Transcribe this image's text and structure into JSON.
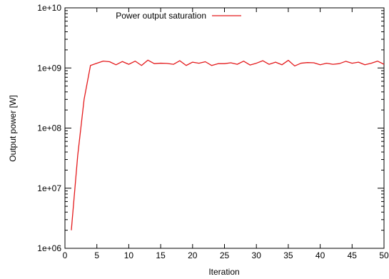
{
  "chart_data": {
    "type": "line",
    "title": "",
    "xlabel": "Iteration",
    "ylabel": "Output power [W]",
    "xlim": [
      0,
      50
    ],
    "ylim": [
      1000000,
      10000000000
    ],
    "yscale": "log",
    "grid": false,
    "legend": "top-center",
    "x_ticks": [
      0,
      5,
      10,
      15,
      20,
      25,
      30,
      35,
      40,
      45,
      50
    ],
    "x_tick_labels": [
      "0",
      "5",
      "10",
      "15",
      "20",
      "25",
      "30",
      "35",
      "40",
      "45",
      "50"
    ],
    "y_ticks": [
      1000000,
      10000000,
      100000000,
      1000000000,
      10000000000
    ],
    "y_tick_labels": [
      "1e+06",
      "1e+07",
      "1e+08",
      "1e+09",
      "1e+10"
    ],
    "series": [
      {
        "name": "Power output saturation",
        "color": "#e41a1c",
        "x": [
          1,
          2,
          3,
          4,
          5,
          6,
          7,
          8,
          9,
          10,
          11,
          12,
          13,
          14,
          15,
          16,
          17,
          18,
          19,
          20,
          21,
          22,
          23,
          24,
          25,
          26,
          27,
          28,
          29,
          30,
          31,
          32,
          33,
          34,
          35,
          36,
          37,
          38,
          39,
          40,
          41,
          42,
          43,
          44,
          45,
          46,
          47,
          48,
          49,
          50
        ],
        "y": [
          2000000,
          35000000,
          300000000,
          1100000000,
          1200000000,
          1300000000,
          1270000000,
          1130000000,
          1280000000,
          1150000000,
          1300000000,
          1100000000,
          1350000000,
          1180000000,
          1200000000,
          1190000000,
          1150000000,
          1320000000,
          1100000000,
          1250000000,
          1200000000,
          1270000000,
          1100000000,
          1180000000,
          1180000000,
          1220000000,
          1150000000,
          1300000000,
          1120000000,
          1200000000,
          1320000000,
          1150000000,
          1250000000,
          1130000000,
          1340000000,
          1080000000,
          1200000000,
          1230000000,
          1220000000,
          1130000000,
          1200000000,
          1150000000,
          1180000000,
          1290000000,
          1200000000,
          1250000000,
          1130000000,
          1200000000,
          1300000000,
          1150000000
        ]
      }
    ]
  }
}
